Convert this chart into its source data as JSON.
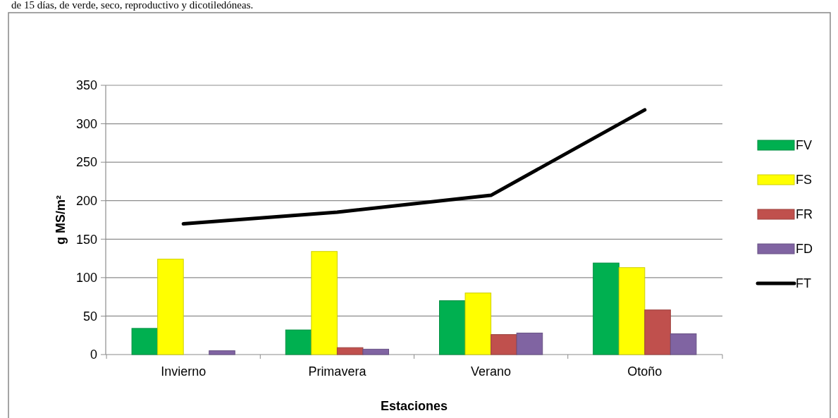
{
  "chart_data": {
    "type": "bar",
    "annotations": [
      "de 15 días, de verde, seco, reproductivo y dicotiledóneas."
    ],
    "xlabel": "Estaciones",
    "ylabel": "g MS/m²",
    "categories": [
      "Invierno",
      "Primavera",
      "Verano",
      "Otoño"
    ],
    "series": [
      {
        "name": "FV",
        "color": "#00b050",
        "values": [
          34,
          32,
          70,
          119
        ]
      },
      {
        "name": "FS",
        "color": "#ffff00",
        "values": [
          124,
          134,
          80,
          113
        ]
      },
      {
        "name": "FR",
        "color": "#c0504d",
        "values": [
          0,
          9,
          26,
          58
        ]
      },
      {
        "name": "FD",
        "color": "#8064a2",
        "values": [
          5,
          7,
          28,
          27
        ]
      },
      {
        "name": "FT",
        "type": "line",
        "color": "#000000",
        "values": [
          170,
          185,
          207,
          318
        ]
      }
    ],
    "ylim": [
      0,
      350
    ],
    "yticks": [
      0,
      50,
      100,
      150,
      200,
      250,
      300,
      350
    ],
    "grid": "y",
    "legend": "right"
  }
}
